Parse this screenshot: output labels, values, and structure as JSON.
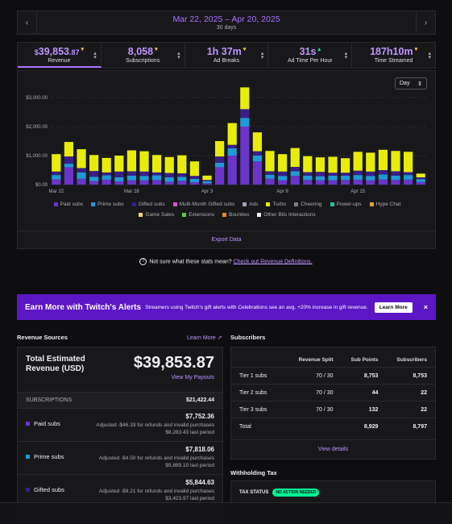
{
  "date_range": {
    "range": "Mar 22, 2025 – Apr 20, 2025",
    "days": "30 days",
    "prev_icon": "chevron-left-icon",
    "next_icon": "chevron-right-icon"
  },
  "stats": [
    {
      "prefix": "$",
      "value": "39,853",
      "decimals": ".87",
      "label": "Revenue",
      "trend": "down"
    },
    {
      "prefix": "",
      "value": "8,058",
      "decimals": "",
      "label": "Subscriptions",
      "trend": "down"
    },
    {
      "prefix": "",
      "value": "1h 37m",
      "decimals": "",
      "label": "Ad Breaks",
      "trend": "down"
    },
    {
      "prefix": "",
      "value": "31s",
      "decimals": "",
      "label": "Ad Time Per Hour",
      "trend": "up"
    },
    {
      "prefix": "",
      "value": "187h10m",
      "decimals": "",
      "label": "Time Streamed",
      "trend": "down"
    }
  ],
  "chart_controls": {
    "period": "Day",
    "export": "Export Data"
  },
  "chart_data": {
    "type": "bar",
    "stacked": true,
    "yticks": [
      "$3,000.00",
      "$2,000.00",
      "$1,000.00",
      "$0.00"
    ],
    "ylim": [
      0,
      3000
    ],
    "xtick_labels": [
      "Mar 22",
      "Mar 28",
      "Apr 3",
      "Apr 9",
      "Apr 15"
    ],
    "categories": [
      "Mar 22",
      "Mar 23",
      "Mar 24",
      "Mar 25",
      "Mar 26",
      "Mar 27",
      "Mar 28",
      "Mar 29",
      "Mar 30",
      "Mar 31",
      "Apr 1",
      "Apr 2",
      "Apr 3",
      "Apr 4",
      "Apr 5",
      "Apr 6",
      "Apr 7",
      "Apr 8",
      "Apr 9",
      "Apr 10",
      "Apr 11",
      "Apr 12",
      "Apr 13",
      "Apr 14",
      "Apr 15",
      "Apr 16",
      "Apr 17",
      "Apr 18",
      "Apr 19",
      "Apr 20"
    ],
    "series": [
      {
        "name": "Paid subs",
        "color": "#6a35c9",
        "values": [
          180,
          600,
          200,
          120,
          170,
          110,
          150,
          150,
          160,
          100,
          130,
          80,
          50,
          600,
          1000,
          2000,
          800,
          200,
          150,
          300,
          160,
          150,
          150,
          160,
          170,
          150,
          180,
          160,
          170,
          90
        ]
      },
      {
        "name": "Prime subs",
        "color": "#1e9bd7",
        "values": [
          150,
          120,
          220,
          150,
          150,
          140,
          160,
          150,
          160,
          150,
          140,
          120,
          70,
          150,
          250,
          300,
          200,
          140,
          150,
          160,
          150,
          140,
          160,
          150,
          160,
          150,
          170,
          150,
          160,
          100
        ]
      },
      {
        "name": "Gifted subs",
        "color": "#3a1f8a",
        "values": [
          120,
          250,
          150,
          200,
          100,
          200,
          150,
          150,
          100,
          150,
          120,
          100,
          40,
          220,
          120,
          300,
          150,
          120,
          150,
          150,
          120,
          150,
          100,
          100,
          150,
          150,
          150,
          150,
          100,
          60
        ]
      },
      {
        "name": "Turbo",
        "color": "#e8ec0a",
        "values": [
          600,
          500,
          650,
          550,
          500,
          550,
          720,
          700,
          600,
          550,
          620,
          500,
          150,
          530,
          750,
          750,
          650,
          700,
          600,
          650,
          550,
          500,
          550,
          500,
          650,
          650,
          700,
          700,
          700,
          130
        ]
      }
    ],
    "legend": [
      "Paid subs",
      "Prime subs",
      "Gifted subs",
      "Multi-Month Gifted subs",
      "Ads",
      "Turbo",
      "Cheering",
      "Power-ups",
      "Hype Chat",
      "Game Sales",
      "Extensions",
      "Bounties",
      "Other Bits Interactions"
    ],
    "legend_colors": [
      "#6a35c9",
      "#1e9bd7",
      "#3a1f8a",
      "#d155d1",
      "#a1a1b5",
      "#e8ec0a",
      "#7b7b8a",
      "#21c3a0",
      "#e39e2c",
      "#f5d76e",
      "#5ecb3a",
      "#e8852a",
      "#eeeeee"
    ],
    "grid": true
  },
  "hint": {
    "text": "Not sure what these stats mean?",
    "link": "Check out Revenue Definitions."
  },
  "banner": {
    "title": "Earn More with Twitch's Alerts",
    "desc": "Streamers using Twitch's gift alerts with Celebrations see an avg. +20% increase in gift revenue.",
    "button": "Learn More",
    "close": "×"
  },
  "revenue": {
    "heading": "Revenue Sources",
    "learn_more": "Learn More ↗",
    "total_label": "Total Estimated Revenue (USD)",
    "total_value": "$39,853.87",
    "view_payouts": "View My Payouts",
    "subs_label": "SUBSCRIPTIONS",
    "subs_value": "$21,422.44",
    "rows": [
      {
        "name": "Paid subs",
        "amount": "$7,752.36",
        "adjust": "Adjusted -$46.33 for refunds and invalid purchases",
        "last": "$8,283.43 last period",
        "color": "#6a35c9"
      },
      {
        "name": "Prime subs",
        "amount": "$7,818.06",
        "adjust": "Adjusted -$4.50 for refunds and invalid purchases",
        "last": "$9,889.10 last period",
        "color": "#1e9bd7"
      },
      {
        "name": "Gifted subs",
        "amount": "$5,844.63",
        "adjust": "Adjusted -$9.21 for refunds and invalid purchases",
        "last": "$3,423.97 last period",
        "color": "#3a1f8a"
      }
    ]
  },
  "subscribers": {
    "heading": "Subscribers",
    "columns": [
      "",
      "Revenue Split",
      "Sub Points",
      "Subscribers"
    ],
    "rows": [
      [
        "Tier 1 subs",
        "70 / 30",
        "8,753",
        "8,753"
      ],
      [
        "Tier 2 subs",
        "70 / 30",
        "44",
        "22"
      ],
      [
        "Tier 3 subs",
        "70 / 30",
        "132",
        "22"
      ],
      [
        "Total",
        "",
        "8,929",
        "8,797"
      ]
    ],
    "view_details": "View details"
  },
  "withholding": {
    "heading": "Withholding Tax",
    "label": "TAX STATUS",
    "badge": "NO ACTION NEEDED"
  }
}
